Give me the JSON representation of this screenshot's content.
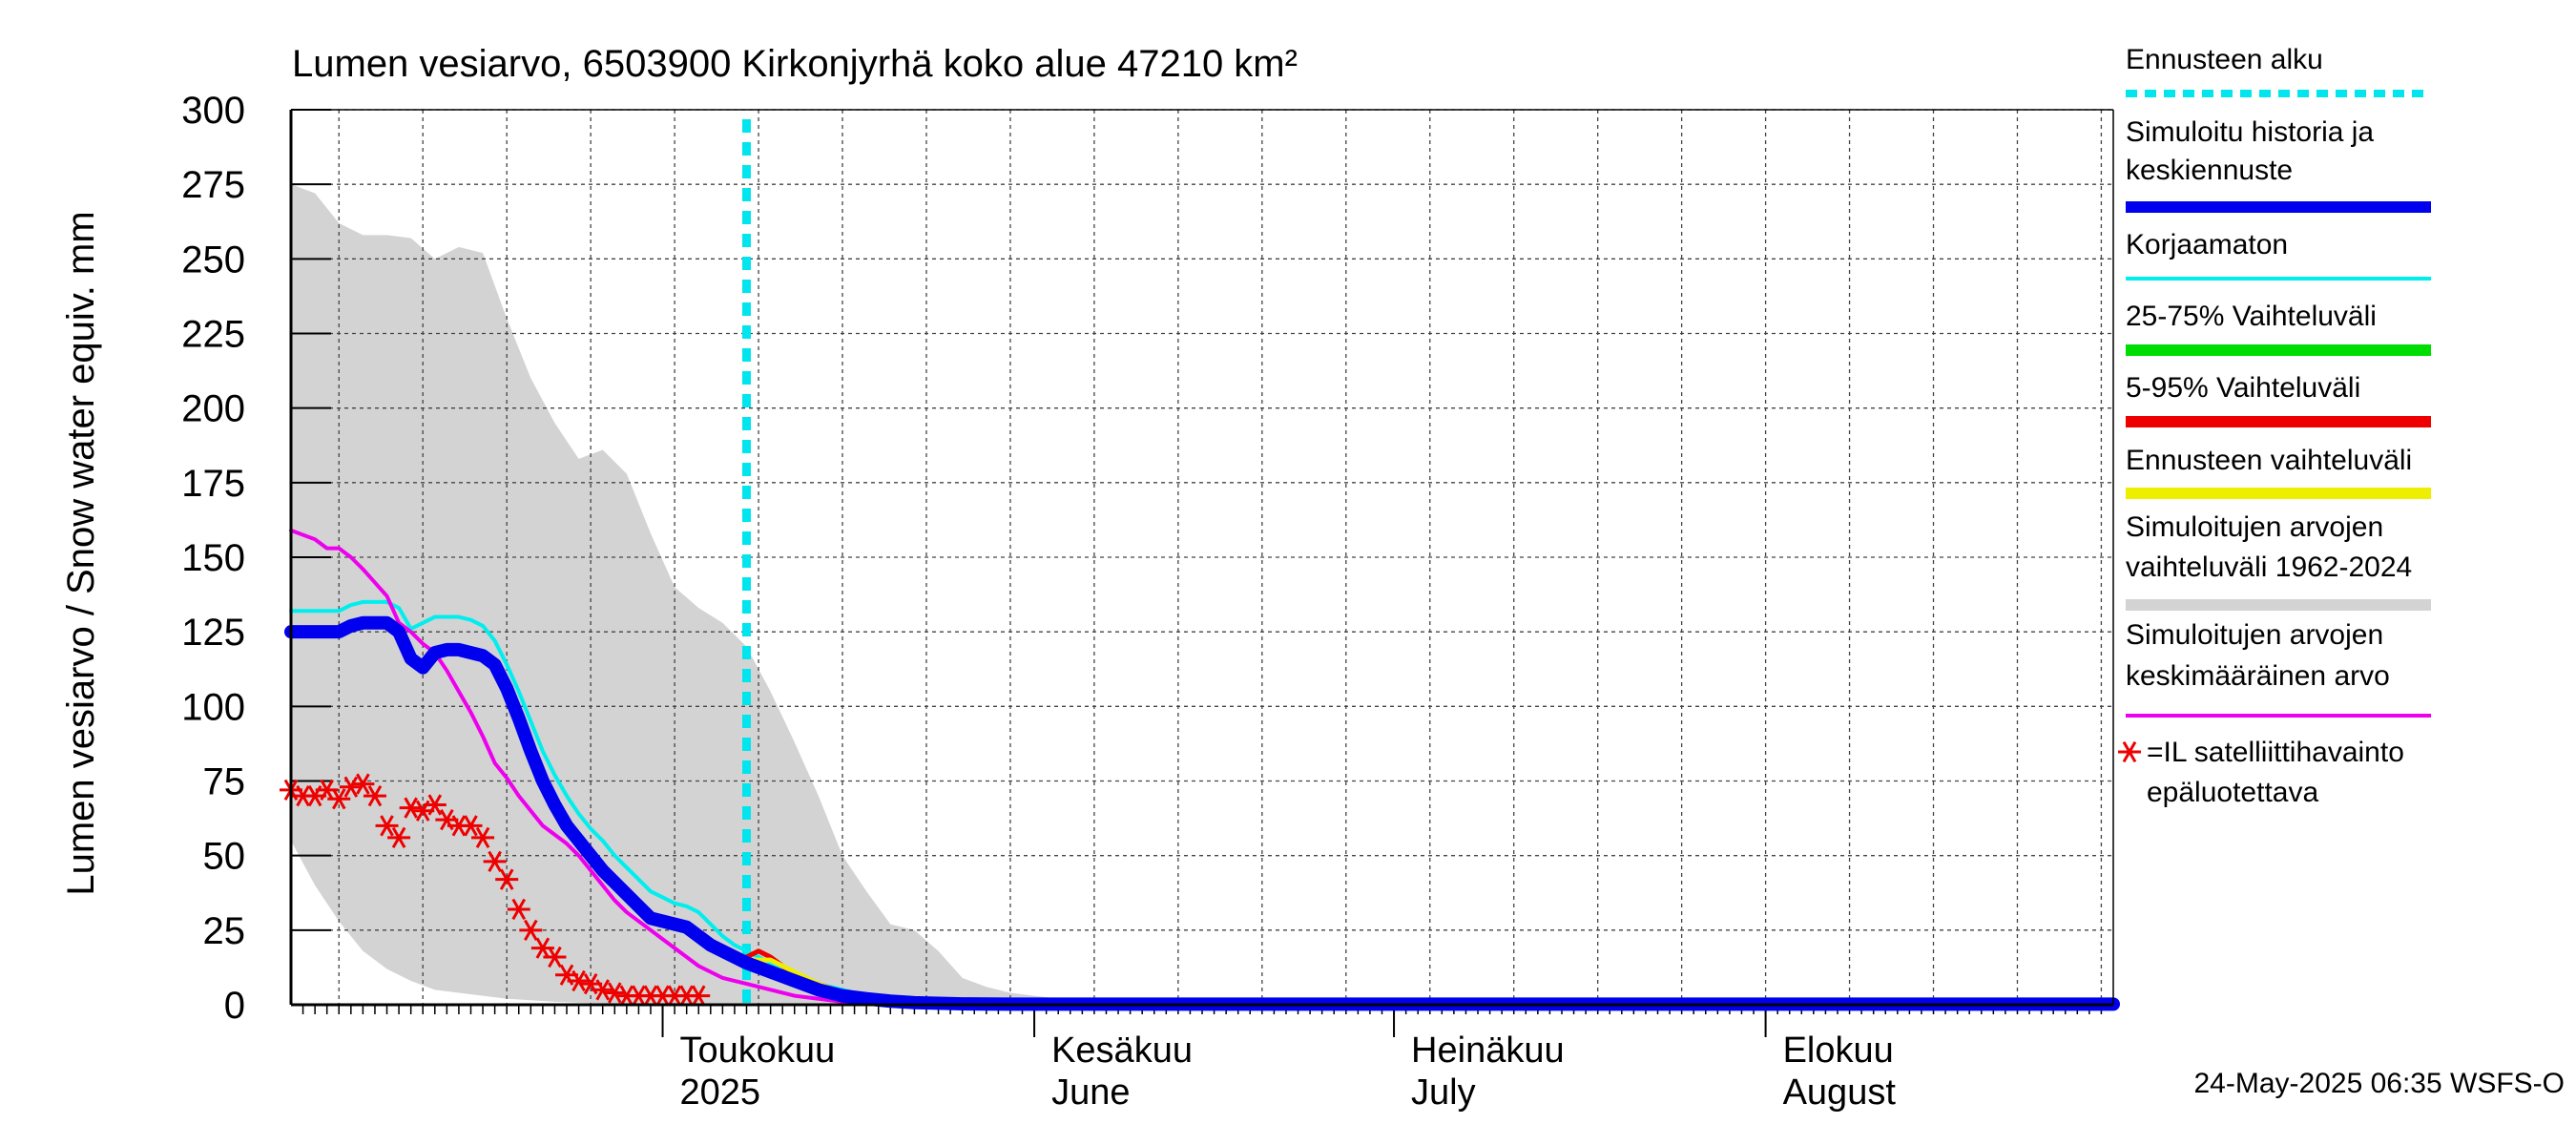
{
  "title": "Lumen vesiarvo, 6503900 Kirkonjyrhä koko alue 47210 km²",
  "y_axis_label": "Lumen vesiarvo / Snow water equiv.    mm",
  "timestamp": "24-May-2025 06:35 WSFS-O",
  "months": [
    {
      "fi": "Toukokuu",
      "en": "2025",
      "day": 31
    },
    {
      "fi": "Kesäkuu",
      "en": "June",
      "day": 62
    },
    {
      "fi": "Heinäkuu",
      "en": "July",
      "day": 92
    },
    {
      "fi": "Elokuu",
      "en": "August",
      "day": 123
    }
  ],
  "legend": [
    {
      "text": [
        "Ennusteen alku"
      ],
      "color": "#00e5ee",
      "style": "dashed"
    },
    {
      "text": [
        "Simuloitu historia ja",
        "keskiennuste"
      ],
      "color": "#0000ee",
      "style": "thick"
    },
    {
      "text": [
        "Korjaamaton"
      ],
      "color": "#00eeee",
      "style": "line"
    },
    {
      "text": [
        "25-75% Vaihteluväli"
      ],
      "color": "#00dd00",
      "style": "thick"
    },
    {
      "text": [
        "5-95% Vaihteluväli"
      ],
      "color": "#ee0000",
      "style": "thick"
    },
    {
      "text": [
        "Ennusteen vaihteluväli"
      ],
      "color": "#eeee00",
      "style": "thick"
    },
    {
      "text": [
        "Simuloitujen arvojen",
        "vaihteluväli 1962-2024"
      ],
      "color": "#d3d3d3",
      "style": "thick"
    },
    {
      "text": [
        "Simuloitujen arvojen",
        "keskimääräinen arvo"
      ],
      "color": "#ee00ee",
      "style": "line"
    },
    {
      "text": [
        "=IL satelliittihavainto",
        "epäluotettava"
      ],
      "color": "#ee0000",
      "style": "star"
    }
  ],
  "chart_data": {
    "type": "line",
    "title": "Lumen vesiarvo, 6503900 Kirkonjyrhä koko alue 47210 km²",
    "ylabel": "Lumen vesiarvo / Snow water equiv. mm",
    "xlabel": "",
    "x_units": "day index (0 = 1 April 2025)",
    "xlim": [
      0,
      152
    ],
    "ylim": [
      0,
      300
    ],
    "yticks": [
      0,
      25,
      50,
      75,
      100,
      125,
      150,
      175,
      200,
      225,
      250,
      275,
      300
    ],
    "forecast_start_day": 38,
    "gray_range_1962_2024": {
      "x": [
        0,
        2,
        4,
        6,
        8,
        10,
        12,
        14,
        16,
        18,
        20,
        22,
        24,
        26,
        28,
        30,
        32,
        34,
        36,
        38,
        40,
        42,
        44,
        46,
        48,
        50,
        52,
        54,
        56,
        58,
        60,
        62,
        64,
        66,
        68,
        70,
        72
      ],
      "upper": [
        275,
        272,
        262,
        258,
        258,
        257,
        250,
        254,
        252,
        230,
        210,
        195,
        183,
        186,
        178,
        158,
        140,
        133,
        128,
        120,
        105,
        88,
        70,
        50,
        38,
        27,
        25,
        18,
        9,
        6,
        4,
        3,
        2,
        1,
        0.5,
        0.3,
        0
      ],
      "lower": [
        55,
        40,
        28,
        18,
        12,
        8,
        5,
        4,
        3,
        2,
        1.5,
        1,
        0.7,
        0.5,
        0.3,
        0.2,
        0.1,
        0,
        0,
        0,
        0,
        0,
        0,
        0,
        0,
        0,
        0,
        0,
        0,
        0,
        0,
        0,
        0,
        0,
        0,
        0,
        0
      ]
    },
    "series": [
      {
        "name": "Korjaamaton",
        "color": "#00eeee",
        "x": [
          0,
          4,
          5,
          6,
          8,
          9,
          10,
          11,
          12,
          13,
          14,
          15,
          16,
          17,
          18,
          19,
          20,
          21,
          22,
          23,
          24,
          25,
          26,
          27,
          28,
          29,
          30,
          31,
          32,
          33,
          34,
          35,
          36,
          37,
          38,
          40,
          42,
          44,
          46,
          48,
          52,
          60,
          152
        ],
        "y": [
          132,
          132,
          134,
          135,
          135,
          133,
          126,
          128,
          130,
          130,
          130,
          129,
          127,
          122,
          114,
          105,
          95,
          85,
          77,
          70,
          64,
          59,
          55,
          50,
          46,
          42,
          38,
          36,
          34,
          33,
          31,
          27,
          23,
          20,
          18,
          14,
          10,
          7,
          5,
          3,
          1.5,
          0.5,
          0
        ]
      },
      {
        "name": "Simuloitujen arvojen keskimääräinen arvo",
        "color": "#ee00ee",
        "x": [
          0,
          2,
          3,
          4,
          5,
          6,
          8,
          9,
          10,
          11,
          12,
          13,
          14,
          15,
          16,
          17,
          18,
          19,
          20,
          21,
          22,
          23,
          24,
          25,
          26,
          27,
          28,
          29,
          30,
          31,
          32,
          33,
          34,
          35,
          36,
          38,
          40,
          42,
          44,
          46,
          50,
          60,
          152
        ],
        "y": [
          159,
          156,
          153,
          153,
          150,
          146,
          137,
          128,
          125,
          121,
          118,
          112,
          105,
          98,
          90,
          81,
          76,
          70,
          65,
          60,
          57,
          54,
          50,
          45,
          40,
          35,
          31,
          28,
          25,
          22,
          19,
          16,
          13,
          11,
          9,
          7,
          5,
          3,
          2,
          1,
          0.5,
          0.3,
          0.2
        ]
      },
      {
        "name": "5-95% Vaihteluväli",
        "color": "#ee0000",
        "x": [
          38,
          39,
          40,
          41,
          42,
          44,
          46,
          48,
          52,
          56
        ],
        "y": [
          16,
          18,
          16,
          13,
          10,
          7,
          4,
          2,
          1,
          0
        ]
      },
      {
        "name": "Ennusteen vaihteluväli",
        "color": "#eeee00",
        "x": [
          38,
          40,
          42,
          44,
          46,
          48,
          52
        ],
        "y": [
          15,
          15,
          11,
          7,
          4,
          2,
          0.5
        ]
      },
      {
        "name": "Simuloitu historia ja keskiennuste",
        "color": "#0000ee",
        "x": [
          0,
          4,
          5,
          6,
          8,
          9,
          10,
          11,
          12,
          13,
          14,
          15,
          16,
          17,
          18,
          19,
          20,
          21,
          22,
          23,
          24,
          25,
          26,
          27,
          28,
          29,
          30,
          31,
          32,
          33,
          34,
          35,
          36,
          37,
          38,
          40,
          42,
          44,
          46,
          48,
          50,
          52,
          56,
          60,
          152
        ],
        "y": [
          125,
          125,
          127,
          128,
          128,
          125,
          116,
          113,
          118,
          119,
          119,
          118,
          117,
          114,
          106,
          96,
          85,
          75,
          67,
          60,
          55,
          50,
          45,
          41,
          37,
          33,
          29,
          28,
          27,
          26,
          23,
          20,
          18,
          16,
          14,
          11,
          8,
          5,
          3,
          2,
          1.2,
          0.7,
          0.3,
          0.2,
          0.2
        ]
      }
    ],
    "satellite_observations": {
      "name": "=IL satelliittihavainto epäluotettava",
      "color": "#ee0000",
      "x": [
        0,
        1,
        2,
        3,
        4,
        5,
        6,
        7,
        8,
        9,
        10,
        11,
        12,
        13,
        14,
        15,
        16,
        17,
        18,
        19,
        20,
        21,
        22,
        23,
        24,
        25,
        26,
        27,
        28,
        29,
        30,
        31,
        32,
        33,
        34
      ],
      "y": [
        72,
        70,
        70,
        72,
        69,
        73,
        74,
        70,
        60,
        56,
        66,
        65,
        67,
        62,
        60,
        60,
        56,
        48,
        42,
        32,
        25,
        19,
        16,
        10,
        8,
        7,
        5,
        4,
        3,
        3,
        3,
        3,
        3,
        3,
        3
      ]
    }
  }
}
